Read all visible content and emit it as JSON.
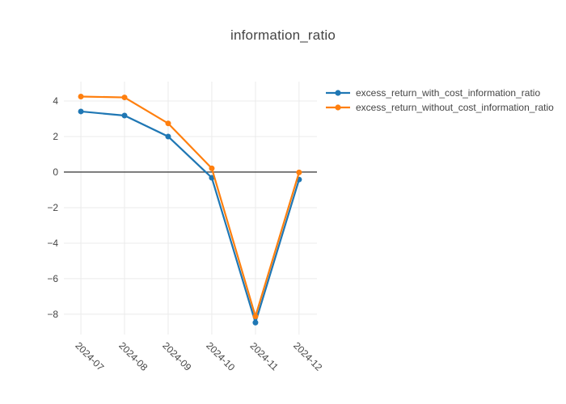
{
  "title": "information_ratio",
  "legend": {
    "items": [
      {
        "label": "excess_return_with_cost_information_ratio",
        "color": "#1f77b4"
      },
      {
        "label": "excess_return_without_cost_information_ratio",
        "color": "#ff7f0e"
      }
    ]
  },
  "chart_data": {
    "type": "line",
    "title": "information_ratio",
    "categories": [
      "2024-07",
      "2024-08",
      "2024-09",
      "2024-10",
      "2024-11",
      "2024-12"
    ],
    "series": [
      {
        "name": "excess_return_with_cost_information_ratio",
        "color": "#1f77b4",
        "values": [
          3.41,
          3.18,
          2.0,
          -0.32,
          -8.47,
          -0.42
        ]
      },
      {
        "name": "excess_return_without_cost_information_ratio",
        "color": "#ff7f0e",
        "values": [
          4.25,
          4.2,
          2.74,
          0.21,
          -8.12,
          -0.02
        ]
      }
    ],
    "xlabel": "",
    "ylabel": "",
    "yticks": [
      4,
      2,
      0,
      -2,
      -4,
      -6,
      -8
    ],
    "ylim": [
      -9.14,
      5.09
    ],
    "xlim": [
      -0.39,
      5.41
    ],
    "grid": true,
    "zeroline": true,
    "tick_angle": 45,
    "legend_position": "right"
  },
  "colors": {
    "background": "#ffffff",
    "grid": "#ebebeb",
    "zeroline": "#444444",
    "tick_text": "#444444"
  }
}
